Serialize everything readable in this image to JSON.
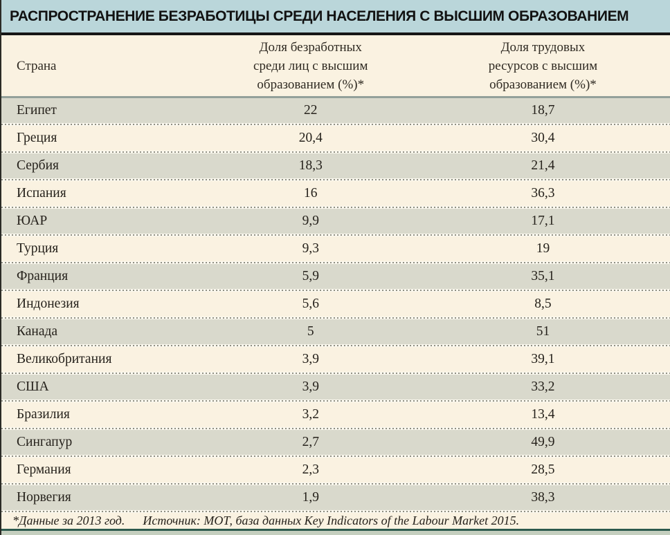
{
  "title": "РАСПРОСТРАНЕНИЕ БЕЗРАБОТИЦЫ СРЕДИ НАСЕЛЕНИЯ С ВЫСШИМ ОБРАЗОВАНИЕМ",
  "chart_data": {
    "type": "table",
    "title": "РАСПРОСТРАНЕНИЕ БЕЗРАБОТИЦЫ СРЕДИ НАСЕЛЕНИЯ С ВЫСШИМ ОБРАЗОВАНИЕМ",
    "columns": [
      "Страна",
      "Доля безработных\nсреди лиц с высшим\nобразованием (%)*",
      "Доля трудовых\nресурсов с высшим\nобразованием (%)*"
    ],
    "rows": [
      {
        "country": "Египет",
        "unemployed_pct": "22",
        "tertiary_labor_pct": "18,7"
      },
      {
        "country": "Греция",
        "unemployed_pct": "20,4",
        "tertiary_labor_pct": "30,4"
      },
      {
        "country": "Сербия",
        "unemployed_pct": "18,3",
        "tertiary_labor_pct": "21,4"
      },
      {
        "country": "Испания",
        "unemployed_pct": "16",
        "tertiary_labor_pct": "36,3"
      },
      {
        "country": "ЮАР",
        "unemployed_pct": "9,9",
        "tertiary_labor_pct": "17,1"
      },
      {
        "country": "Турция",
        "unemployed_pct": "9,3",
        "tertiary_labor_pct": "19"
      },
      {
        "country": "Франция",
        "unemployed_pct": "5,9",
        "tertiary_labor_pct": "35,1"
      },
      {
        "country": "Индонезия",
        "unemployed_pct": "5,6",
        "tertiary_labor_pct": "8,5"
      },
      {
        "country": "Канада",
        "unemployed_pct": "5",
        "tertiary_labor_pct": "51"
      },
      {
        "country": "Великобритания",
        "unemployed_pct": "3,9",
        "tertiary_labor_pct": "39,1"
      },
      {
        "country": "США",
        "unemployed_pct": "3,9",
        "tertiary_labor_pct": "33,2"
      },
      {
        "country": "Бразилия",
        "unemployed_pct": "3,2",
        "tertiary_labor_pct": "13,4"
      },
      {
        "country": "Сингапур",
        "unemployed_pct": "2,7",
        "tertiary_labor_pct": "49,9"
      },
      {
        "country": "Германия",
        "unemployed_pct": "2,3",
        "tertiary_labor_pct": "28,5"
      },
      {
        "country": "Норвегия",
        "unemployed_pct": "1,9",
        "tertiary_labor_pct": "38,3"
      }
    ],
    "footnote": "*Данные за 2013 год.",
    "source": "Источник: МОТ, база данных Key Indicators of the Labour Market 2015.",
    "layout": {
      "row_striping": "alternating gray/cream",
      "grid": "dotted horizontal separators only"
    }
  },
  "colors": {
    "title_band": "#bad6da",
    "row_gray": "#d9d9cc",
    "row_cream": "#faf2e1",
    "rule_dark": "#161616",
    "rule_mid": "#93a09a",
    "rule_teal": "#2d5a4e",
    "bottom_band": "#c5cfbf",
    "text": "#26221c"
  }
}
